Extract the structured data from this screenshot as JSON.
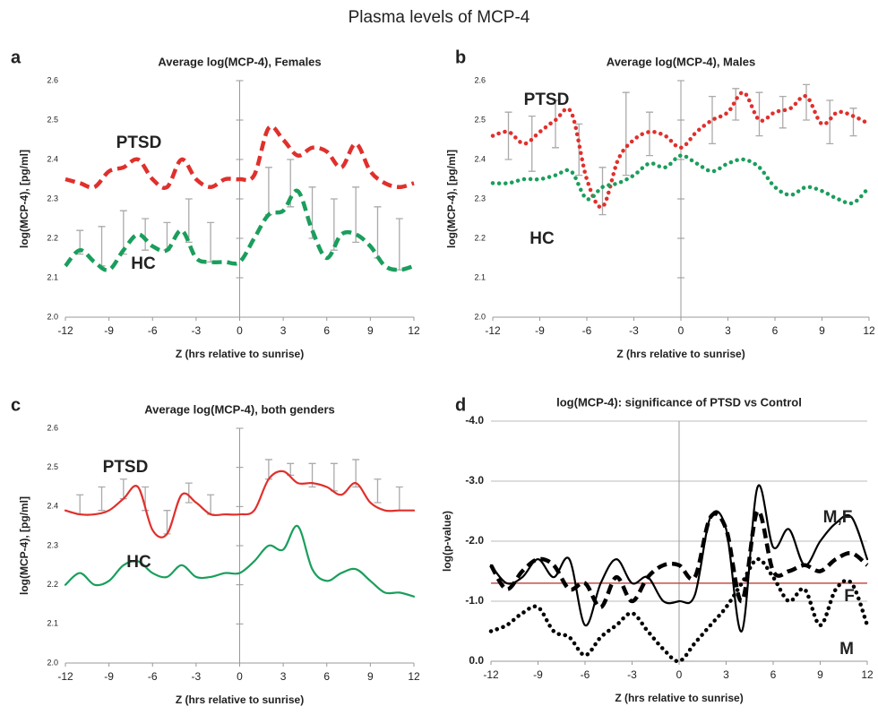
{
  "title": "Plasma levels of MCP-4",
  "chart_data": [
    {
      "type": "line",
      "label": "a",
      "title": "Average log(MCP-4),  Females",
      "xlabel": "Z (hrs relative to sunrise)",
      "ylabel": "log(MCP-4),  [pg/ml]",
      "x": [
        -12,
        -11,
        -10,
        -9,
        -8,
        -7,
        -6,
        -5,
        -4,
        -3,
        -2,
        -1,
        0,
        1,
        2,
        3,
        4,
        5,
        6,
        7,
        8,
        9,
        10,
        11,
        12
      ],
      "series": [
        {
          "name": "PTSD",
          "color": "#e0302c",
          "line_style": "dashed",
          "values": [
            2.35,
            2.34,
            2.33,
            2.37,
            2.38,
            2.4,
            2.35,
            2.33,
            2.4,
            2.35,
            2.33,
            2.35,
            2.35,
            2.36,
            2.48,
            2.45,
            2.41,
            2.43,
            2.42,
            2.38,
            2.44,
            2.37,
            2.34,
            2.33,
            2.34
          ]
        },
        {
          "name": "HC",
          "color": "#1a9e5c",
          "line_style": "dashed",
          "values": [
            2.13,
            2.17,
            2.14,
            2.12,
            2.17,
            2.21,
            2.18,
            2.17,
            2.22,
            2.15,
            2.14,
            2.14,
            2.14,
            2.2,
            2.26,
            2.27,
            2.32,
            2.22,
            2.15,
            2.21,
            2.21,
            2.18,
            2.13,
            2.12,
            2.13
          ]
        }
      ],
      "error_bars": {
        "x": [
          -11,
          -9.5,
          -8,
          -6.5,
          -5,
          -3.5,
          -2,
          2,
          3.5,
          5,
          6.5,
          8,
          9.5,
          11
        ],
        "low": [
          2.16,
          2.13,
          2.16,
          2.17,
          2.17,
          2.19,
          2.14,
          2.26,
          2.28,
          2.2,
          2.17,
          2.19,
          2.15,
          2.12
        ],
        "high": [
          2.22,
          2.23,
          2.27,
          2.25,
          2.24,
          2.3,
          2.24,
          2.38,
          2.4,
          2.33,
          2.3,
          2.33,
          2.28,
          2.25
        ]
      },
      "xlim": [
        -12,
        12
      ],
      "xticks": [
        -12,
        -9,
        -6,
        -3,
        0,
        3,
        6,
        9,
        12
      ],
      "ylim": [
        2.0,
        2.6
      ],
      "yticks": [
        {
          "value": 2.0,
          "label": "2.0"
        },
        2.1,
        2.2,
        2.3,
        2.4,
        2.5,
        2.6
      ],
      "grid": false
    },
    {
      "type": "line",
      "label": "b",
      "title": "Average log(MCP-4),  Males",
      "xlabel": "Z (hrs relative to sunrise)",
      "ylabel": "log(MCP-4),  [pg/ml]",
      "x": [
        -12,
        -11,
        -10,
        -9,
        -8,
        -7,
        -6,
        -5,
        -4,
        -3,
        -2,
        -1,
        0,
        1,
        2,
        3,
        4,
        5,
        6,
        7,
        8,
        9,
        10,
        11,
        12
      ],
      "series": [
        {
          "name": "PTSD",
          "color": "#e0302c",
          "line_style": "dotted",
          "values": [
            2.46,
            2.47,
            2.44,
            2.47,
            2.5,
            2.52,
            2.35,
            2.28,
            2.4,
            2.45,
            2.47,
            2.46,
            2.43,
            2.47,
            2.5,
            2.52,
            2.57,
            2.5,
            2.52,
            2.53,
            2.56,
            2.49,
            2.52,
            2.51,
            2.49
          ]
        },
        {
          "name": "HC",
          "color": "#1a9e5c",
          "line_style": "dotted",
          "values": [
            2.34,
            2.34,
            2.35,
            2.35,
            2.36,
            2.37,
            2.3,
            2.33,
            2.34,
            2.36,
            2.39,
            2.38,
            2.41,
            2.39,
            2.37,
            2.39,
            2.4,
            2.38,
            2.33,
            2.31,
            2.33,
            2.32,
            2.3,
            2.29,
            2.33
          ]
        }
      ],
      "error_bars": {
        "x": [
          -11,
          -9.5,
          -8,
          -6.5,
          -5,
          -3.5,
          -2,
          2,
          3.5,
          5,
          6.5,
          8,
          9.5,
          11
        ],
        "low": [
          2.4,
          2.37,
          2.43,
          2.36,
          2.26,
          2.36,
          2.41,
          2.44,
          2.5,
          2.46,
          2.48,
          2.5,
          2.44,
          2.46
        ],
        "high": [
          2.52,
          2.51,
          2.55,
          2.49,
          2.38,
          2.57,
          2.52,
          2.56,
          2.58,
          2.57,
          2.56,
          2.59,
          2.55,
          2.53
        ]
      },
      "xlim": [
        -12,
        12
      ],
      "xticks": [
        -12,
        -9,
        -6,
        -3,
        0,
        3,
        6,
        9,
        12
      ],
      "ylim": [
        2.0,
        2.6
      ],
      "yticks": [
        {
          "value": 2.0,
          "label": "2.0"
        },
        2.1,
        2.2,
        2.3,
        2.4,
        2.5,
        2.6
      ],
      "grid": false
    },
    {
      "type": "line",
      "label": "c",
      "title": "Average log(MCP-4),  both genders",
      "xlabel": "Z (hrs relative to sunrise)",
      "ylabel": "log(MCP-4),  [pg/ml]",
      "x": [
        -12,
        -11,
        -10,
        -9,
        -8,
        -7,
        -6,
        -5,
        -4,
        -3,
        -2,
        -1,
        0,
        1,
        2,
        3,
        4,
        5,
        6,
        7,
        8,
        9,
        10,
        11,
        12
      ],
      "series": [
        {
          "name": "PTSD",
          "color": "#e0302c",
          "line_style": "solid",
          "values": [
            2.39,
            2.38,
            2.38,
            2.39,
            2.42,
            2.45,
            2.34,
            2.33,
            2.43,
            2.41,
            2.38,
            2.38,
            2.38,
            2.39,
            2.47,
            2.49,
            2.46,
            2.46,
            2.45,
            2.43,
            2.46,
            2.41,
            2.39,
            2.39,
            2.39
          ]
        },
        {
          "name": "HC",
          "color": "#1a9e5c",
          "line_style": "solid",
          "values": [
            2.2,
            2.23,
            2.2,
            2.21,
            2.25,
            2.26,
            2.23,
            2.22,
            2.25,
            2.22,
            2.22,
            2.23,
            2.23,
            2.26,
            2.3,
            2.29,
            2.35,
            2.24,
            2.21,
            2.23,
            2.24,
            2.21,
            2.18,
            2.18,
            2.17
          ]
        }
      ],
      "error_bars": {
        "x": [
          -11,
          -9.5,
          -8,
          -6.5,
          -5,
          -3.5,
          -2,
          2,
          3.5,
          5,
          6.5,
          8,
          9.5,
          11
        ],
        "low": [
          2.38,
          2.39,
          2.42,
          2.39,
          2.33,
          2.41,
          2.38,
          2.47,
          2.48,
          2.45,
          2.44,
          2.45,
          2.41,
          2.39
        ],
        "high": [
          2.43,
          2.45,
          2.47,
          2.45,
          2.39,
          2.46,
          2.43,
          2.52,
          2.51,
          2.51,
          2.51,
          2.52,
          2.47,
          2.45
        ]
      },
      "xlim": [
        -12,
        12
      ],
      "xticks": [
        -12,
        -9,
        -6,
        -3,
        0,
        3,
        6,
        9,
        12
      ],
      "ylim": [
        2.0,
        2.6
      ],
      "yticks": [
        {
          "value": 2.0,
          "label": "2.0"
        },
        2.1,
        2.2,
        2.3,
        2.4,
        2.5,
        2.6
      ],
      "grid": false
    },
    {
      "type": "line",
      "label": "d",
      "title": "log(MCP-4): significance of PTSD vs Control",
      "xlabel": "Z (hrs relative to sunrise)",
      "ylabel": "log(p-value)",
      "x": [
        -12,
        -11,
        -10,
        -9,
        -8,
        -7,
        -6,
        -5,
        -4,
        -3,
        -2,
        -1,
        0,
        1,
        2,
        3,
        4,
        5,
        6,
        7,
        8,
        9,
        10,
        11,
        12
      ],
      "series": [
        {
          "name": "M,F",
          "color": "#000000",
          "line_style": "solid",
          "values": [
            -1.6,
            -1.3,
            -1.4,
            -1.7,
            -1.4,
            -1.7,
            -0.6,
            -1.3,
            -1.7,
            -1.3,
            -1.4,
            -1.0,
            -1.0,
            -1.1,
            -2.4,
            -2.2,
            -0.5,
            -2.9,
            -1.9,
            -2.2,
            -1.6,
            -2.0,
            -2.3,
            -2.4,
            -1.7
          ]
        },
        {
          "name": "F",
          "color": "#000000",
          "line_style": "dashed",
          "values": [
            -1.6,
            -1.2,
            -1.5,
            -1.7,
            -1.6,
            -1.2,
            -1.3,
            -0.9,
            -1.4,
            -1.0,
            -1.4,
            -1.6,
            -1.6,
            -1.4,
            -2.4,
            -2.2,
            -1.0,
            -2.5,
            -1.5,
            -1.5,
            -1.6,
            -1.5,
            -1.7,
            -1.8,
            -1.6
          ]
        },
        {
          "name": "M",
          "color": "#000000",
          "line_style": "dotted",
          "values": [
            -0.5,
            -0.6,
            -0.8,
            -0.9,
            -0.5,
            -0.4,
            -0.1,
            -0.4,
            -0.6,
            -0.8,
            -0.5,
            -0.2,
            0.0,
            -0.3,
            -0.6,
            -0.9,
            -1.3,
            -1.7,
            -1.4,
            -1.0,
            -1.2,
            -0.6,
            -1.2,
            -1.3,
            -0.6
          ]
        }
      ],
      "reference_line": -1.3,
      "reference_color": "#c0504d",
      "xlim": [
        -12,
        12
      ],
      "xticks": [
        -12,
        -9,
        -6,
        -3,
        0,
        3,
        6,
        9,
        12
      ],
      "ylim": [
        0,
        -4
      ],
      "yticks": [
        {
          "value": 0,
          "label": "0.0"
        },
        {
          "value": -1,
          "label": "-1.0"
        },
        {
          "value": -2,
          "label": "-2.0"
        },
        {
          "value": -3,
          "label": "-3.0"
        },
        {
          "value": -4,
          "label": "-4.0"
        }
      ],
      "grid": true
    }
  ]
}
